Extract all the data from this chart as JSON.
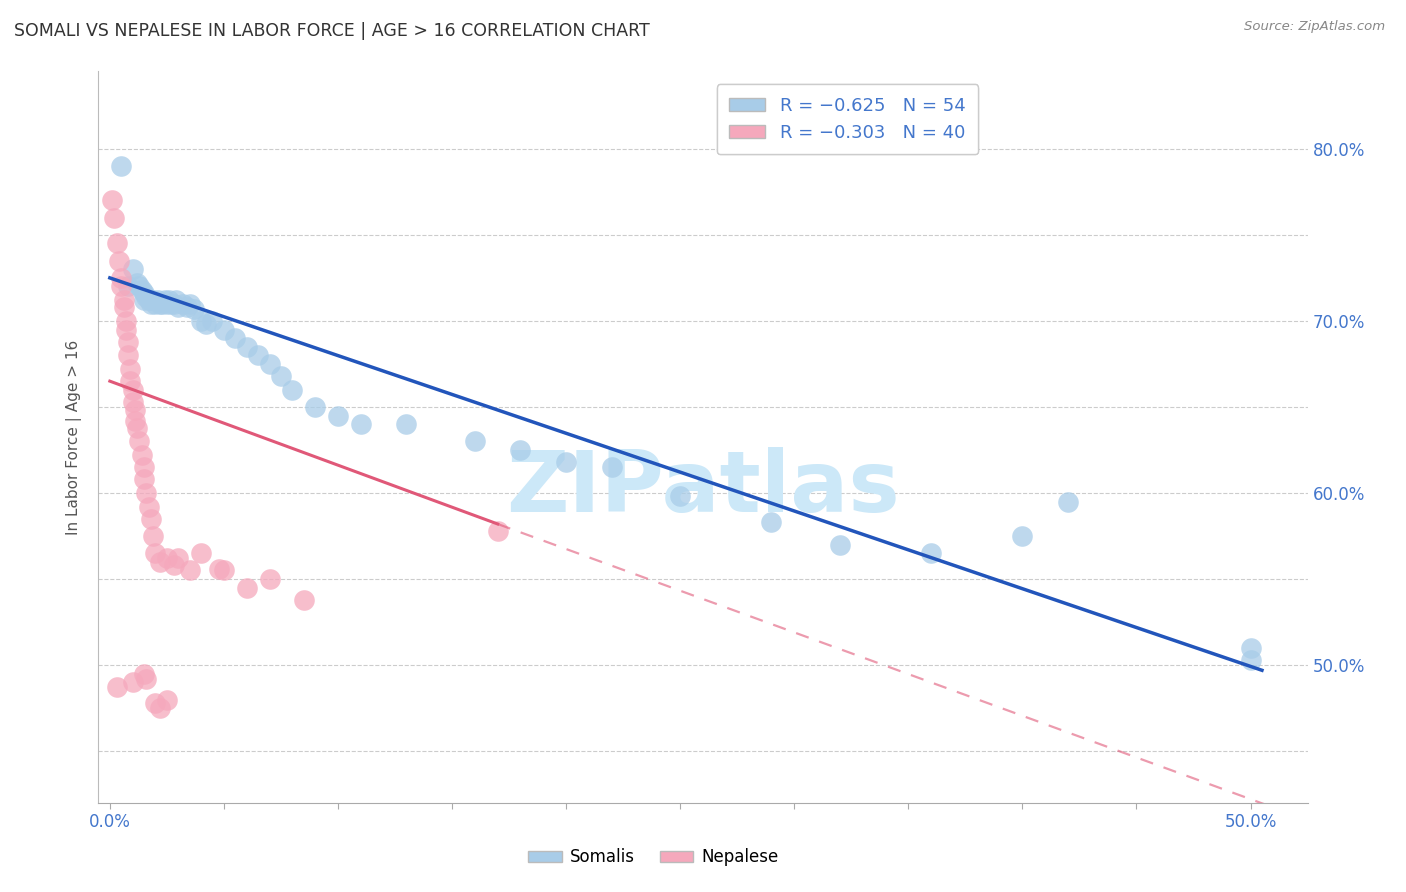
{
  "title": "SOMALI VS NEPALESE IN LABOR FORCE | AGE > 16 CORRELATION CHART",
  "source": "Source: ZipAtlas.com",
  "ylabel": "In Labor Force | Age > 16",
  "xlim": [
    -0.005,
    0.525
  ],
  "ylim": [
    0.42,
    0.845
  ],
  "x_tick_positions": [
    0.0,
    0.5
  ],
  "x_tick_labels": [
    "0.0%",
    "50.0%"
  ],
  "y_ticks": [
    0.45,
    0.5,
    0.55,
    0.6,
    0.65,
    0.7,
    0.75,
    0.8
  ],
  "y_right_labels": [
    "",
    "50.0%",
    "",
    "60.0%",
    "",
    "70.0%",
    "",
    "80.0%"
  ],
  "blue_R": "-0.625",
  "blue_N": "54",
  "pink_R": "-0.303",
  "pink_N": "40",
  "blue_line": [
    [
      0.0,
      0.725
    ],
    [
      0.505,
      0.497
    ]
  ],
  "pink_line_solid": [
    [
      0.0,
      0.665
    ],
    [
      0.17,
      0.582
    ]
  ],
  "pink_line_dash": [
    [
      0.17,
      0.582
    ],
    [
      0.525,
      0.41
    ]
  ],
  "somali_x": [
    0.005,
    0.008,
    0.01,
    0.012,
    0.013,
    0.014,
    0.015,
    0.015,
    0.016,
    0.017,
    0.018,
    0.018,
    0.019,
    0.02,
    0.021,
    0.022,
    0.023,
    0.024,
    0.025,
    0.026,
    0.027,
    0.028,
    0.029,
    0.03,
    0.032,
    0.034,
    0.035,
    0.037,
    0.04,
    0.042,
    0.045,
    0.05,
    0.055,
    0.06,
    0.065,
    0.07,
    0.075,
    0.08,
    0.09,
    0.1,
    0.11,
    0.13,
    0.16,
    0.18,
    0.2,
    0.22,
    0.25,
    0.29,
    0.32,
    0.36,
    0.4,
    0.42,
    0.5,
    0.5
  ],
  "somali_y": [
    0.79,
    0.72,
    0.73,
    0.722,
    0.72,
    0.718,
    0.716,
    0.712,
    0.714,
    0.712,
    0.71,
    0.712,
    0.712,
    0.71,
    0.712,
    0.71,
    0.71,
    0.712,
    0.71,
    0.712,
    0.71,
    0.71,
    0.712,
    0.708,
    0.71,
    0.708,
    0.71,
    0.707,
    0.7,
    0.698,
    0.7,
    0.695,
    0.69,
    0.685,
    0.68,
    0.675,
    0.668,
    0.66,
    0.65,
    0.645,
    0.64,
    0.64,
    0.63,
    0.625,
    0.618,
    0.615,
    0.598,
    0.583,
    0.57,
    0.565,
    0.575,
    0.595,
    0.503,
    0.51
  ],
  "nepalese_x": [
    0.001,
    0.002,
    0.003,
    0.004,
    0.005,
    0.005,
    0.006,
    0.006,
    0.007,
    0.007,
    0.008,
    0.008,
    0.009,
    0.009,
    0.01,
    0.01,
    0.011,
    0.011,
    0.012,
    0.013,
    0.014,
    0.015,
    0.015,
    0.016,
    0.017,
    0.018,
    0.019,
    0.02,
    0.022,
    0.025,
    0.028,
    0.03,
    0.035,
    0.04,
    0.048,
    0.05,
    0.06,
    0.07,
    0.085,
    0.17
  ],
  "nepalese_y": [
    0.77,
    0.76,
    0.745,
    0.735,
    0.72,
    0.725,
    0.712,
    0.708,
    0.7,
    0.695,
    0.688,
    0.68,
    0.672,
    0.665,
    0.66,
    0.653,
    0.648,
    0.642,
    0.638,
    0.63,
    0.622,
    0.615,
    0.608,
    0.6,
    0.592,
    0.585,
    0.575,
    0.565,
    0.56,
    0.562,
    0.558,
    0.562,
    0.555,
    0.565,
    0.556,
    0.555,
    0.545,
    0.55,
    0.538,
    0.578
  ],
  "nepalese_low_x": [
    0.003,
    0.01,
    0.015,
    0.016,
    0.02,
    0.022,
    0.025
  ],
  "nepalese_low_y": [
    0.487,
    0.49,
    0.495,
    0.492,
    0.478,
    0.475,
    0.48
  ],
  "blue_color": "#a8cce8",
  "blue_line_color": "#2255bb",
  "pink_color": "#f5a8bc",
  "pink_line_color": "#e05878",
  "background_color": "#ffffff",
  "grid_color": "#cccccc",
  "watermark": "ZIPatlas",
  "watermark_color": "#cce8f8"
}
